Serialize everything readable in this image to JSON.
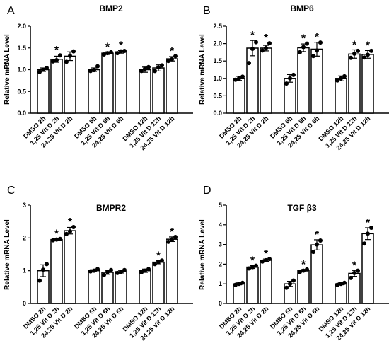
{
  "chart_data": [
    {
      "panel": "A",
      "type": "bar",
      "title": "BMP2",
      "ylabel": "Relative mRNA Level",
      "ylim": [
        0,
        2.0
      ],
      "yticks": [
        "0.0",
        "0.5",
        "1.0",
        "1.5",
        "2.0"
      ],
      "grid": false,
      "categories": [
        "DMSO 2h",
        "1,25 Vit D 2h",
        "24,25 Vit D 2h",
        "DMSO 6h",
        "1,25 Vit D 6h",
        "24,25 Vit D 6h",
        "DMSO 12h",
        "1,25 Vit D 12h",
        "24,25 Vit D 12h"
      ],
      "values": [
        1.0,
        1.24,
        1.31,
        1.0,
        1.38,
        1.41,
        1.0,
        1.04,
        1.25
      ],
      "errors": [
        0.04,
        0.07,
        0.1,
        0.04,
        0.03,
        0.03,
        0.06,
        0.07,
        0.05
      ],
      "points": [
        [
          0.95,
          1.0,
          1.04
        ],
        [
          1.19,
          1.22,
          1.33
        ],
        [
          1.18,
          1.32,
          1.42
        ],
        [
          0.97,
          0.99,
          1.08
        ],
        [
          1.35,
          1.38,
          1.4
        ],
        [
          1.38,
          1.42,
          1.43
        ],
        [
          0.97,
          1.02,
          1.06
        ],
        [
          0.97,
          1.05,
          1.1
        ],
        [
          1.2,
          1.24,
          1.31
        ]
      ],
      "significant": [
        false,
        true,
        false,
        false,
        true,
        true,
        false,
        false,
        true
      ]
    },
    {
      "panel": "B",
      "type": "bar",
      "title": "BMP6",
      "ylabel": "Relative mRNA Level",
      "ylim": [
        0,
        2.5
      ],
      "yticks": [
        "0.0",
        "0.5",
        "1.0",
        "1.5",
        "2.0",
        "2.5"
      ],
      "grid": false,
      "categories": [
        "DMSO 2h",
        "1,25 Vit D 2h",
        "24,25 Vit D 2h",
        "DMSO 6h",
        "1,25 Vit D 6h",
        "24,25 Vit D 6h",
        "DMSO 12h",
        "1,25 Vit D 12h",
        "24,25 Vit D 12h"
      ],
      "values": [
        1.0,
        1.87,
        1.87,
        1.0,
        1.88,
        1.84,
        1.0,
        1.7,
        1.69
      ],
      "errors": [
        0.06,
        0.22,
        0.08,
        0.11,
        0.11,
        0.2,
        0.07,
        0.12,
        0.11
      ],
      "points": [
        [
          0.96,
          1.0,
          1.05
        ],
        [
          1.44,
          1.85,
          2.04
        ],
        [
          1.8,
          1.87,
          2.01
        ],
        [
          0.85,
          1.0,
          1.1
        ],
        [
          1.75,
          1.9,
          2.0
        ],
        [
          1.64,
          1.8,
          2.03
        ],
        [
          0.94,
          1.0,
          1.06
        ],
        [
          1.59,
          1.71,
          1.79
        ],
        [
          1.6,
          1.68,
          1.79
        ]
      ],
      "significant": [
        false,
        true,
        true,
        false,
        true,
        true,
        false,
        true,
        true
      ]
    },
    {
      "panel": "C",
      "type": "bar",
      "title": "BMPR2",
      "ylabel": "Relative mRNA Level",
      "ylim": [
        0,
        3
      ],
      "yticks": [
        "0",
        "1",
        "2",
        "3"
      ],
      "grid": false,
      "categories": [
        "DMSO 2h",
        "1,25 Vit D 2h",
        "24,25 Vit D 2h",
        "DMSO 6h",
        "1,25 Vit D 6h",
        "24,25 Vit D 6h",
        "DMSO 12h",
        "1,25 Vit D 12h",
        "24,25 Vit D 12h"
      ],
      "values": [
        1.0,
        1.95,
        2.22,
        1.0,
        0.95,
        0.97,
        1.0,
        1.26,
        1.96
      ],
      "errors": [
        0.18,
        0.02,
        0.1,
        0.03,
        0.06,
        0.04,
        0.05,
        0.05,
        0.07
      ],
      "points": [
        [
          0.7,
          1.03,
          1.2
        ],
        [
          1.93,
          1.95,
          1.97
        ],
        [
          2.12,
          2.2,
          2.33
        ],
        [
          0.98,
          1.0,
          1.05
        ],
        [
          0.87,
          0.96,
          1.02
        ],
        [
          0.93,
          0.96,
          1.02
        ],
        [
          0.95,
          1.0,
          1.05
        ],
        [
          1.2,
          1.27,
          1.31
        ],
        [
          1.88,
          1.95,
          2.03
        ]
      ],
      "significant": [
        false,
        true,
        true,
        false,
        false,
        false,
        false,
        true,
        true
      ]
    },
    {
      "panel": "D",
      "type": "bar",
      "title": "TGF β3",
      "ylabel": "Relative mRNA Level",
      "ylim": [
        0,
        5
      ],
      "yticks": [
        "0",
        "1",
        "2",
        "3",
        "4",
        "5"
      ],
      "grid": false,
      "categories": [
        "DMSO 2h",
        "1,25 Vit D 2h",
        "24,25 Vit D 2h",
        "DMSO 6h",
        "1,25 Vit D 6h",
        "24,25 Vit D 6h",
        "DMSO 12h",
        "1,25 Vit D 12h",
        "24,25 Vit D 12h"
      ],
      "values": [
        1.0,
        1.85,
        2.2,
        1.0,
        1.67,
        2.98,
        1.0,
        1.53,
        3.55
      ],
      "errors": [
        0.05,
        0.07,
        0.06,
        0.13,
        0.06,
        0.26,
        0.05,
        0.15,
        0.3
      ],
      "points": [
        [
          0.95,
          1.0,
          1.05
        ],
        [
          1.78,
          1.85,
          1.92
        ],
        [
          2.13,
          2.2,
          2.26
        ],
        [
          0.8,
          1.0,
          1.17
        ],
        [
          1.6,
          1.67,
          1.73
        ],
        [
          2.62,
          3.0,
          3.2
        ],
        [
          0.95,
          1.0,
          1.05
        ],
        [
          1.3,
          1.55,
          1.67
        ],
        [
          3.05,
          3.55,
          3.85
        ]
      ],
      "significant": [
        false,
        true,
        true,
        false,
        true,
        true,
        false,
        true,
        true
      ]
    }
  ]
}
